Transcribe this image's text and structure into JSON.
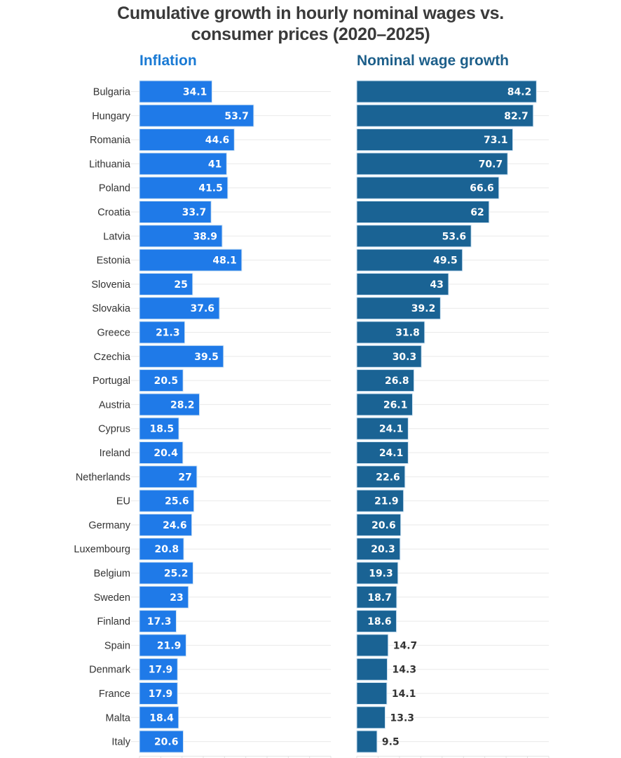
{
  "chart_data": {
    "type": "bar",
    "orientation": "horizontal",
    "title": "Cumulative growth in hourly nominal wages vs. consumer prices (2020–2025)",
    "title_lines": [
      "Cumulative growth in hourly nominal wages vs.",
      "consumer prices (2020–2025)"
    ],
    "categories": [
      "Bulgaria",
      "Hungary",
      "Romania",
      "Lithuania",
      "Poland",
      "Croatia",
      "Latvia",
      "Estonia",
      "Slovenia",
      "Slovakia",
      "Greece",
      "Czechia",
      "Portugal",
      "Austria",
      "Cyprus",
      "Ireland",
      "Netherlands",
      "EU",
      "Germany",
      "Luxembourg",
      "Belgium",
      "Sweden",
      "Finland",
      "Spain",
      "Denmark",
      "France",
      "Malta",
      "Italy"
    ],
    "series": [
      {
        "name": "Inflation",
        "color": "#1f7ae8",
        "title_color": "#1a7ad4",
        "values": [
          34.1,
          53.7,
          44.6,
          41,
          41.5,
          33.7,
          38.9,
          48.1,
          25,
          37.6,
          21.3,
          39.5,
          20.5,
          28.2,
          18.5,
          20.4,
          27,
          25.6,
          24.6,
          20.8,
          25.2,
          23,
          17.3,
          21.9,
          17.9,
          17.9,
          18.4,
          20.6
        ],
        "labels": [
          "34.1",
          "53.7",
          "44.6",
          "41",
          "41.5",
          "33.7",
          "38.9",
          "48.1",
          "25",
          "37.6",
          "21.3",
          "39.5",
          "20.5",
          "28.2",
          "18.5",
          "20.4",
          "27",
          "25.6",
          "24.6",
          "20.8",
          "25.2",
          "23",
          "17.3",
          "21.9",
          "17.9",
          "17.9",
          "18.4",
          "20.6"
        ]
      },
      {
        "name": "Nominal wage growth",
        "color": "#1a6394",
        "title_color": "#1d5f8a",
        "values": [
          84.2,
          82.7,
          73.1,
          70.7,
          66.6,
          62,
          53.6,
          49.5,
          43,
          39.2,
          31.8,
          30.3,
          26.8,
          26.1,
          24.1,
          24.1,
          22.6,
          21.9,
          20.6,
          20.3,
          19.3,
          18.7,
          18.6,
          14.7,
          14.3,
          14.1,
          13.3,
          9.5
        ],
        "labels": [
          "84.2",
          "82.7",
          "73.1",
          "70.7",
          "66.6",
          "62",
          "53.6",
          "49.5",
          "43",
          "39.2",
          "31.8",
          "30.3",
          "26.8",
          "26.1",
          "24.1",
          "24.1",
          "22.6",
          "21.9",
          "20.6",
          "20.3",
          "19.3",
          "18.7",
          "18.6",
          "14.7",
          "14.3",
          "14.1",
          "13.3",
          "9.5"
        ]
      }
    ],
    "xlim": [
      0,
      90
    ],
    "x_tick_step": 10,
    "x_tick_labels_shown": false,
    "grid": true,
    "xlabel": "",
    "ylabel": "",
    "legend": "panel titles above each panel",
    "label_colors": {
      "inside": "#ffffff",
      "outside": "#333333"
    }
  }
}
